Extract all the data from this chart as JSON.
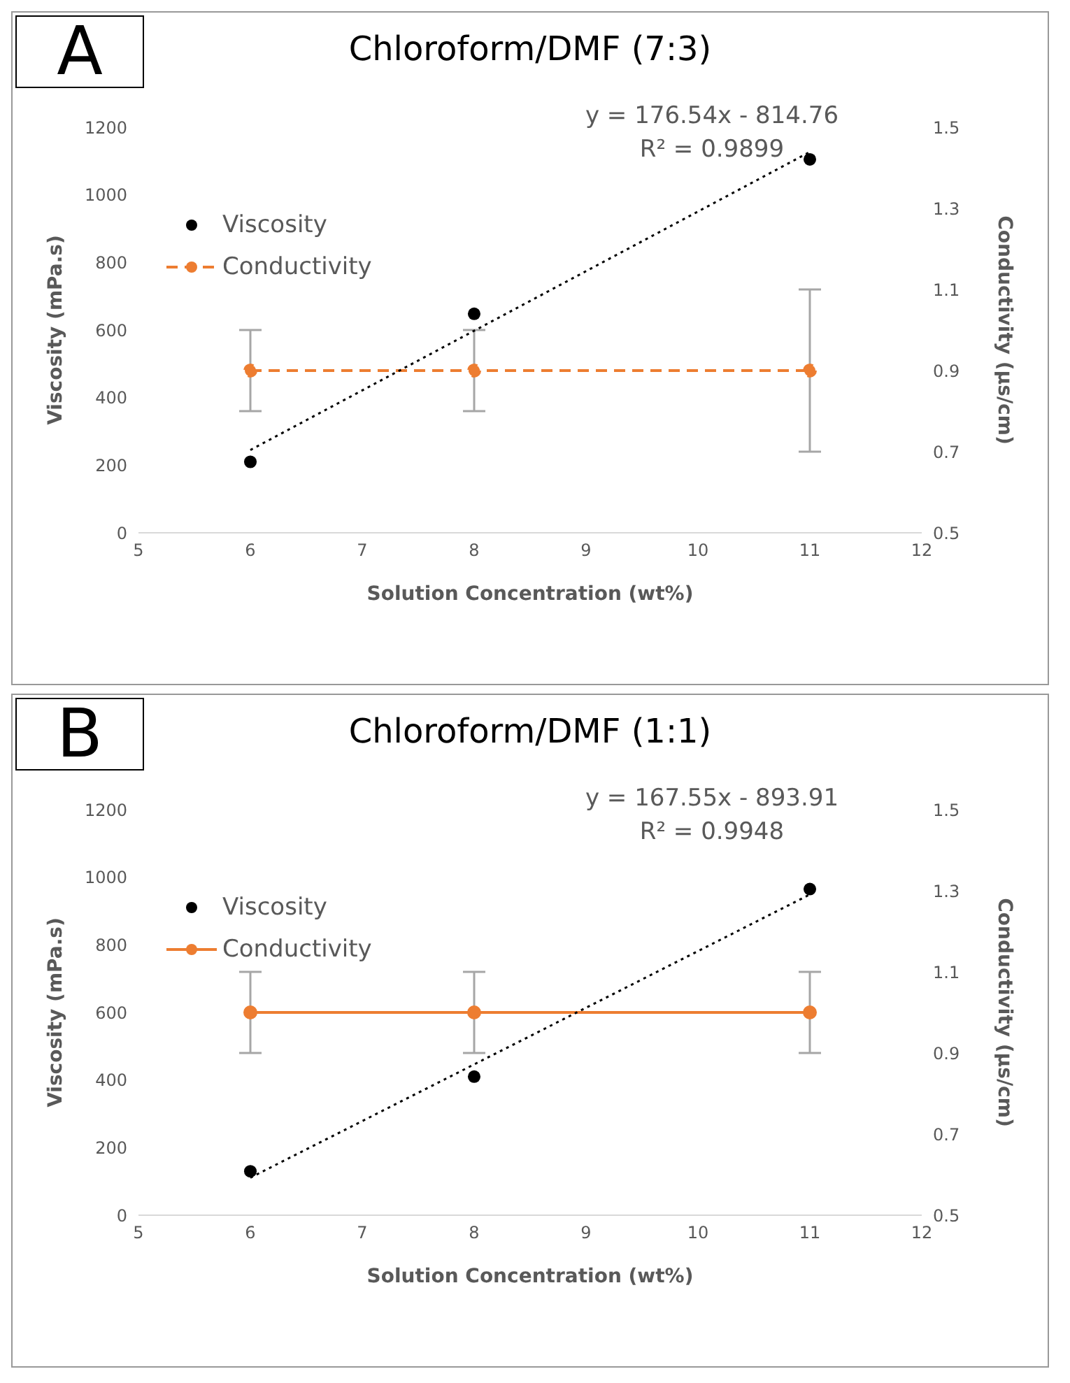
{
  "chart_data": [
    {
      "type": "scatter",
      "title": "Chloroform/DMF (7:3)",
      "xlabel": "Solution Concentration (wt%)",
      "ylabel": "Viscosity (mPa.s)",
      "y2label": "Conductivity (µs/cm)",
      "annotations": [
        "A",
        "y = 176.54x - 814.76",
        "R² = 0.9899"
      ],
      "xlim": [
        5,
        12
      ],
      "xticks": [
        5,
        6,
        7,
        8,
        9,
        10,
        11,
        12
      ],
      "ylim": [
        0,
        1200
      ],
      "yticks": [
        0,
        200,
        400,
        600,
        800,
        1000,
        1200
      ],
      "y2lim": [
        0.5,
        1.5
      ],
      "y2ticks": [
        0.5,
        0.7,
        0.9,
        1.1,
        1.3,
        1.5
      ],
      "legend": "top left",
      "series": [
        {
          "name": "Viscosity",
          "color": "#000000",
          "x": [
            6,
            8,
            11
          ],
          "values": [
            210,
            648,
            1105
          ],
          "marker": "circle"
        },
        {
          "name": "Conductivity",
          "type": "line",
          "axis": "y2",
          "color": "#ed7d31",
          "x": [
            6,
            8,
            11
          ],
          "values": [
            0.9,
            0.9,
            0.9
          ],
          "errors": [
            0.1,
            0.1,
            0.2
          ],
          "marker": "circle",
          "line_style": "dashed"
        },
        {
          "type": "line",
          "color": "#000000",
          "x": [
            6,
            11
          ],
          "values": [
            245,
            1127
          ],
          "marker": "none",
          "line_style": "dotted"
        }
      ]
    },
    {
      "type": "scatter",
      "title": "Chloroform/DMF (1:1)",
      "xlabel": "Solution Concentration (wt%)",
      "ylabel": "Viscosity (mPa.s)",
      "y2label": "Conductivity (µs/cm)",
      "annotations": [
        "B",
        "y = 167.55x - 893.91",
        "R² = 0.9948"
      ],
      "xlim": [
        5,
        12
      ],
      "xticks": [
        5,
        6,
        7,
        8,
        9,
        10,
        11,
        12
      ],
      "ylim": [
        0,
        1200
      ],
      "yticks": [
        0,
        200,
        400,
        600,
        800,
        1000,
        1200
      ],
      "y2lim": [
        0.5,
        1.5
      ],
      "y2ticks": [
        0.5,
        0.7,
        0.9,
        1.1,
        1.3,
        1.5
      ],
      "legend": "top left",
      "series": [
        {
          "name": "Viscosity",
          "color": "#000000",
          "x": [
            6,
            8,
            11
          ],
          "values": [
            130,
            410,
            965
          ],
          "marker": "circle"
        },
        {
          "name": "Conductivity",
          "type": "line",
          "axis": "y2",
          "color": "#ed7d31",
          "x": [
            6,
            8,
            11
          ],
          "values": [
            1.0,
            1.0,
            1.0
          ],
          "errors": [
            0.1,
            0.1,
            0.1
          ],
          "marker": "circle",
          "line_style": "solid"
        },
        {
          "type": "line",
          "color": "#000000",
          "x": [
            6,
            11
          ],
          "values": [
            111,
            949
          ],
          "marker": "none",
          "line_style": "dotted"
        }
      ]
    }
  ]
}
